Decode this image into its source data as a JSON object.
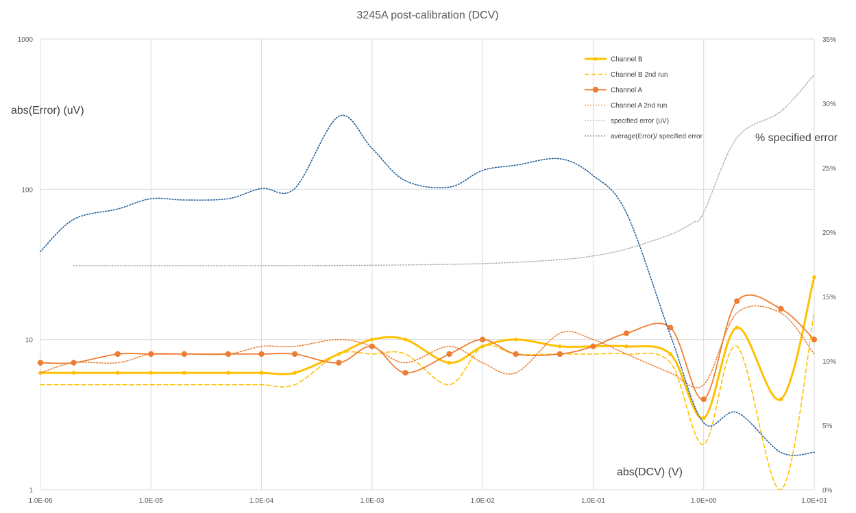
{
  "chart_data": {
    "type": "line",
    "title": "3245A post-calibration (DCV)",
    "xlabel": "abs(DCV) (V)",
    "ylabel": "abs(Error) (uV)",
    "y2label": "% specified error",
    "x_scale": "log",
    "y_scale": "log",
    "xlim": [
      1e-06,
      10
    ],
    "ylim": [
      1,
      1000
    ],
    "y2lim": [
      0,
      35
    ],
    "x_tick_labels": [
      "1.0E-06",
      "1.0E-05",
      "1.0E-04",
      "1.0E-03",
      "1.0E-02",
      "1.0E-01",
      "1.0E+00",
      "1.0E+01"
    ],
    "y_tick_labels": [
      "1",
      "10",
      "100",
      "1000"
    ],
    "y2_tick_labels": [
      "0%",
      "5%",
      "10%",
      "15%",
      "20%",
      "25%",
      "30%",
      "35%"
    ],
    "grid": "vertical and horizontal major gridlines",
    "legend_position": "top-right",
    "series": [
      {
        "name": "Channel B",
        "axis": "left",
        "style": "solid-thick-markers",
        "color": "#FFC000",
        "points": [
          [
            1e-06,
            6
          ],
          [
            2e-06,
            6
          ],
          [
            5e-06,
            6
          ],
          [
            1e-05,
            6
          ],
          [
            2e-05,
            6
          ],
          [
            5e-05,
            6
          ],
          [
            0.0001,
            6
          ],
          [
            0.0002,
            6
          ],
          [
            0.0005,
            8
          ],
          [
            0.001,
            10
          ],
          [
            0.002,
            10
          ],
          [
            0.005,
            7
          ],
          [
            0.01,
            9
          ],
          [
            0.02,
            10
          ],
          [
            0.05,
            9
          ],
          [
            0.1,
            9
          ],
          [
            0.2,
            9
          ],
          [
            0.5,
            8
          ],
          [
            1,
            3
          ],
          [
            2,
            12
          ],
          [
            5,
            4
          ],
          [
            10,
            26
          ]
        ]
      },
      {
        "name": "Channel B 2nd run",
        "axis": "left",
        "style": "dashed",
        "color": "#FFC000",
        "points": [
          [
            1e-06,
            5
          ],
          [
            2e-06,
            5
          ],
          [
            5e-06,
            5
          ],
          [
            1e-05,
            5
          ],
          [
            2e-05,
            5
          ],
          [
            5e-05,
            5
          ],
          [
            0.0001,
            5
          ],
          [
            0.0002,
            5
          ],
          [
            0.0005,
            8
          ],
          [
            0.001,
            8
          ],
          [
            0.002,
            8
          ],
          [
            0.005,
            5
          ],
          [
            0.01,
            9
          ],
          [
            0.02,
            8
          ],
          [
            0.05,
            8
          ],
          [
            0.1,
            8
          ],
          [
            0.2,
            8
          ],
          [
            0.5,
            7
          ],
          [
            1,
            2
          ],
          [
            2,
            9
          ],
          [
            5,
            1
          ],
          [
            10,
            15
          ]
        ]
      },
      {
        "name": "Channel A",
        "axis": "left",
        "style": "solid-markers",
        "color": "#ED7D31",
        "points": [
          [
            1e-06,
            7
          ],
          [
            2e-06,
            7
          ],
          [
            5e-06,
            8
          ],
          [
            1e-05,
            8
          ],
          [
            2e-05,
            8
          ],
          [
            5e-05,
            8
          ],
          [
            0.0001,
            8
          ],
          [
            0.0002,
            8
          ],
          [
            0.0005,
            7
          ],
          [
            0.001,
            9
          ],
          [
            0.002,
            6
          ],
          [
            0.005,
            8
          ],
          [
            0.01,
            10
          ],
          [
            0.02,
            8
          ],
          [
            0.05,
            8
          ],
          [
            0.1,
            9
          ],
          [
            0.2,
            11
          ],
          [
            0.5,
            12
          ],
          [
            1,
            4
          ],
          [
            2,
            18
          ],
          [
            5,
            16
          ],
          [
            10,
            10
          ]
        ]
      },
      {
        "name": "Channel A 2nd run",
        "axis": "left",
        "style": "dotted",
        "color": "#ED7D31",
        "points": [
          [
            1e-06,
            6
          ],
          [
            2e-06,
            7
          ],
          [
            5e-06,
            7
          ],
          [
            1e-05,
            8
          ],
          [
            2e-05,
            8
          ],
          [
            5e-05,
            8
          ],
          [
            0.0001,
            9
          ],
          [
            0.0002,
            9
          ],
          [
            0.0005,
            10
          ],
          [
            0.001,
            9
          ],
          [
            0.002,
            7
          ],
          [
            0.005,
            9
          ],
          [
            0.01,
            7
          ],
          [
            0.02,
            6
          ],
          [
            0.05,
            11
          ],
          [
            0.1,
            10
          ],
          [
            0.2,
            8
          ],
          [
            0.5,
            6
          ],
          [
            1,
            5
          ],
          [
            2,
            15
          ],
          [
            5,
            15
          ],
          [
            10,
            8
          ]
        ]
      },
      {
        "name": "specified error (uV)",
        "axis": "left",
        "style": "dotted-thin",
        "color": "#A5A5A5",
        "points": [
          [
            2e-06,
            31
          ],
          [
            1e-05,
            31
          ],
          [
            0.0001,
            31
          ],
          [
            0.001,
            31.2
          ],
          [
            0.01,
            32
          ],
          [
            0.05,
            34
          ],
          [
            0.1,
            36
          ],
          [
            0.2,
            40
          ],
          [
            0.5,
            50
          ],
          [
            0.8,
            60
          ],
          [
            1,
            70
          ],
          [
            2,
            220
          ],
          [
            5,
            330
          ],
          [
            10,
            580
          ]
        ]
      },
      {
        "name": "average(Error)/ specified error",
        "axis": "right",
        "style": "dotted",
        "color": "#1F5C99",
        "points": [
          [
            1e-06,
            18.5
          ],
          [
            2e-06,
            21
          ],
          [
            5e-06,
            21.8
          ],
          [
            1e-05,
            22.6
          ],
          [
            2e-05,
            22.5
          ],
          [
            5e-05,
            22.6
          ],
          [
            0.0001,
            23.4
          ],
          [
            0.0002,
            23.4
          ],
          [
            0.0005,
            29
          ],
          [
            0.001,
            26.5
          ],
          [
            0.002,
            24
          ],
          [
            0.005,
            23.5
          ],
          [
            0.01,
            24.8
          ],
          [
            0.02,
            25.2
          ],
          [
            0.05,
            25.7
          ],
          [
            0.1,
            24.4
          ],
          [
            0.2,
            21.5
          ],
          [
            0.5,
            12
          ],
          [
            1,
            5.2
          ],
          [
            2,
            6
          ],
          [
            5,
            2.9
          ],
          [
            10,
            2.9
          ]
        ]
      }
    ]
  }
}
